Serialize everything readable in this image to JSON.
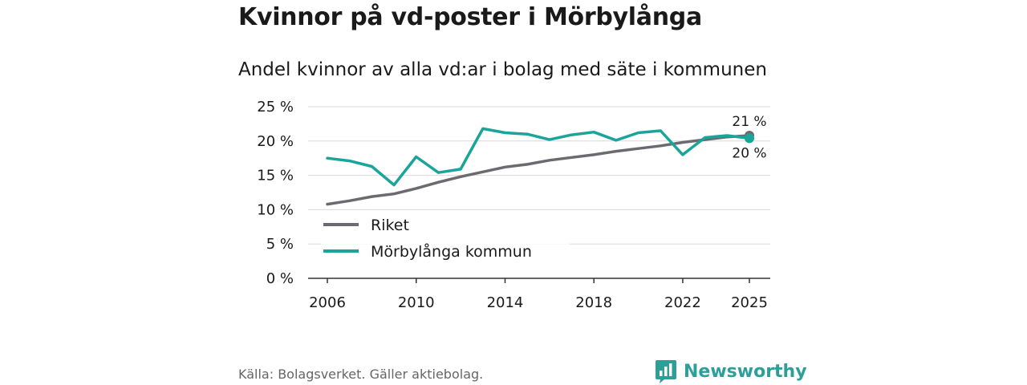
{
  "header": {
    "title": "Kvinnor på vd-poster i Mörbylånga",
    "subtitle": "Andel kvinnor av alla vd:ar i bolag med säte i kommunen"
  },
  "footer": {
    "source": "Källa: Bolagsverket. Gäller aktiebolag.",
    "brand": "Newsworthy",
    "brand_icon": "bar-chart-logo-icon"
  },
  "colors": {
    "riket": "#6c6a70",
    "kommun": "#1aa49a",
    "grid": "#d9d9d9",
    "brand": "#2e9e98"
  },
  "chart_data": {
    "type": "line",
    "x": [
      2006,
      2007,
      2008,
      2009,
      2010,
      2011,
      2012,
      2013,
      2014,
      2015,
      2016,
      2017,
      2018,
      2019,
      2020,
      2021,
      2022,
      2023,
      2024,
      2025
    ],
    "series": [
      {
        "name": "Riket",
        "values": [
          10.8,
          11.3,
          11.9,
          12.3,
          13.1,
          14.0,
          14.8,
          15.5,
          16.2,
          16.6,
          17.2,
          17.6,
          18.0,
          18.5,
          18.9,
          19.3,
          19.8,
          20.2,
          20.6,
          20.8
        ],
        "end_label": "21 %"
      },
      {
        "name": "Mörbylånga kommun",
        "values": [
          17.5,
          17.1,
          16.3,
          13.6,
          17.7,
          15.4,
          15.9,
          21.8,
          21.2,
          21.0,
          20.2,
          20.9,
          21.3,
          20.1,
          21.2,
          21.5,
          18.0,
          20.5,
          20.8,
          20.4
        ],
        "end_label": "20 %"
      }
    ],
    "yticks": [
      "0 %",
      "5 %",
      "10 %",
      "15 %",
      "20 %",
      "25 %"
    ],
    "ytick_values": [
      0,
      5,
      10,
      15,
      20,
      25
    ],
    "xticks": [
      "2006",
      "2010",
      "2014",
      "2018",
      "2022",
      "2025"
    ],
    "xtick_values": [
      2006,
      2010,
      2014,
      2018,
      2022,
      2025
    ],
    "ylim": [
      0,
      25
    ],
    "xlim": [
      2006,
      2025
    ],
    "grid": true,
    "legend_position": "lower-left",
    "xlabel": "",
    "ylabel": ""
  }
}
